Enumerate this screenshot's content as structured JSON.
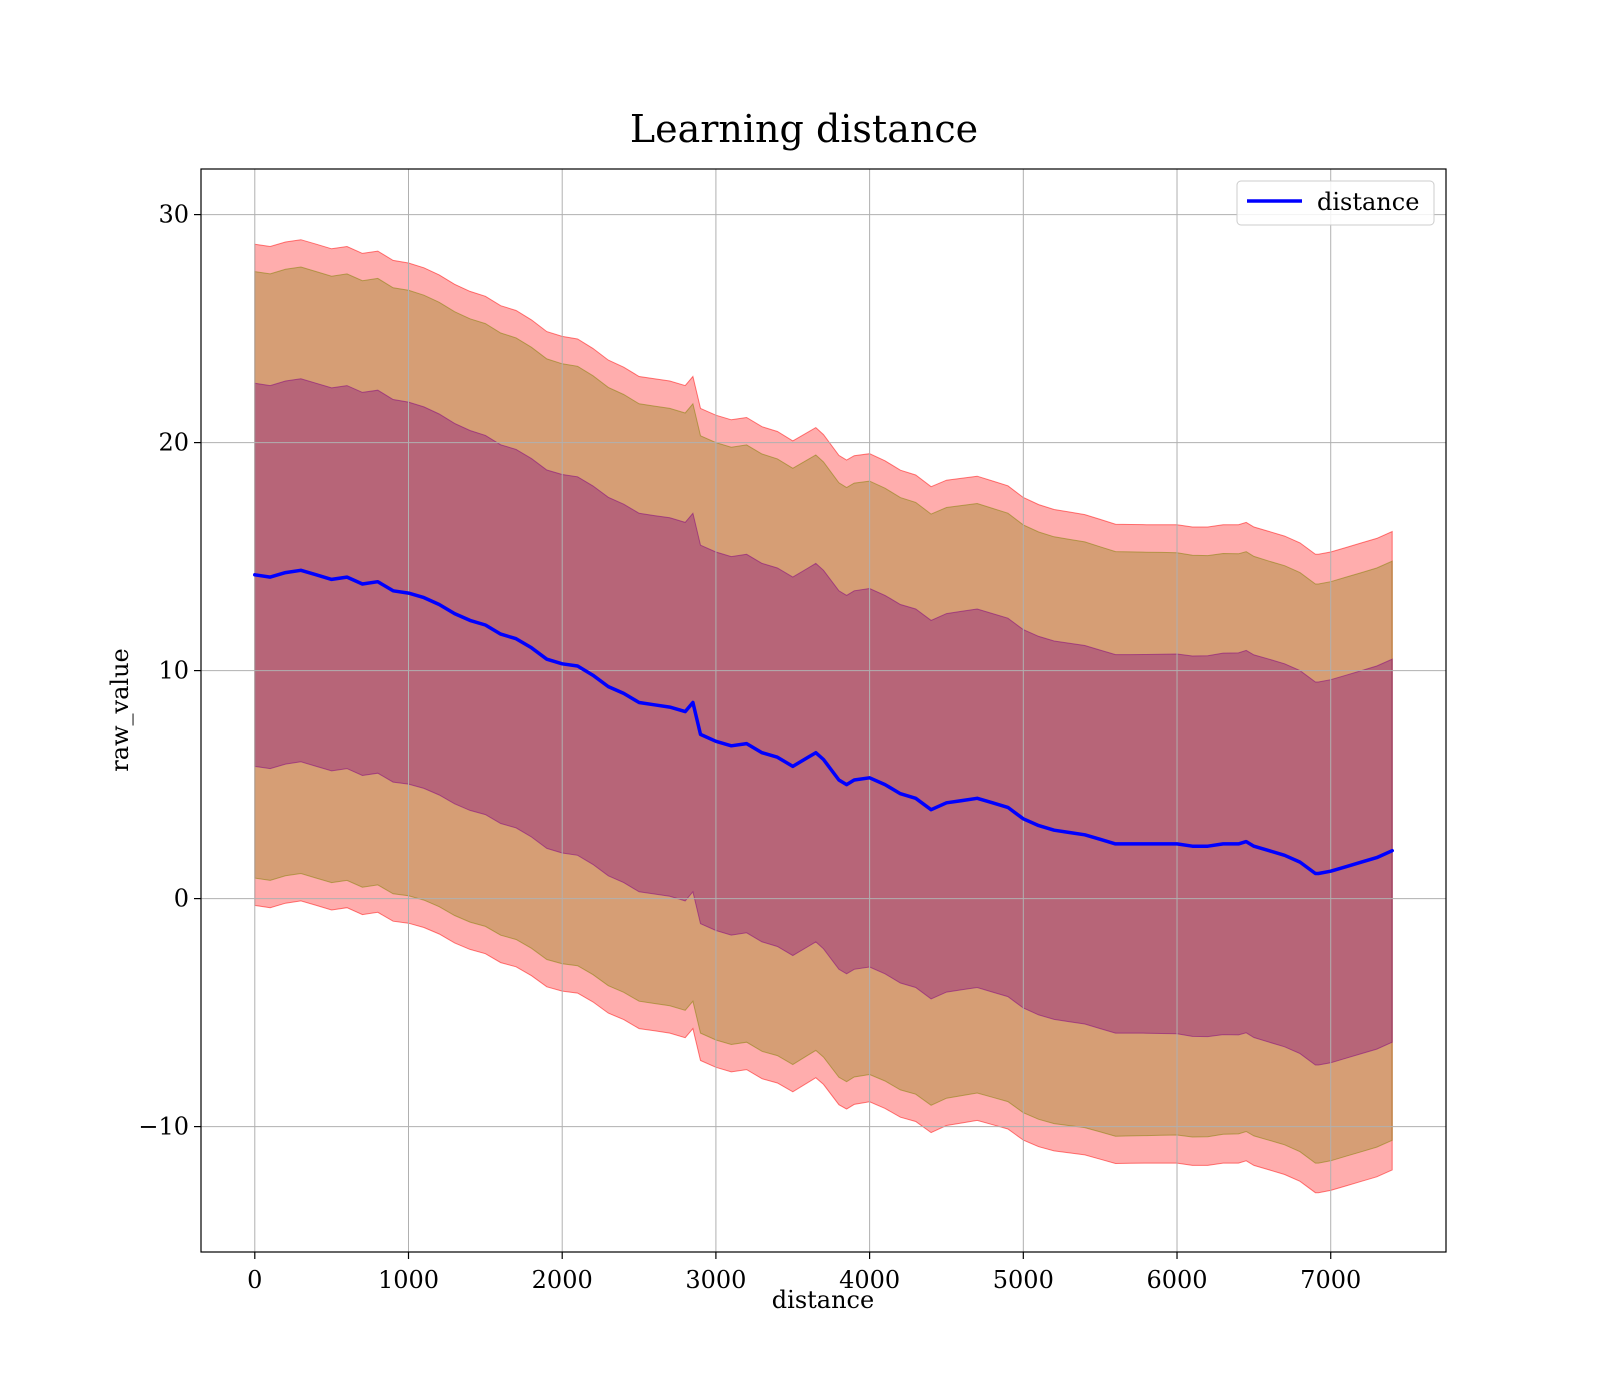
{
  "chart_data": {
    "type": "line",
    "title": "Learning distance",
    "xlabel": "distance",
    "ylabel": "raw_value",
    "xlim": [
      -350,
      7750
    ],
    "ylim": [
      -15.5,
      32
    ],
    "xticks": [
      0,
      1000,
      2000,
      3000,
      4000,
      5000,
      6000,
      7000
    ],
    "xtick_labels": [
      "0",
      "1000",
      "2000",
      "3000",
      "4000",
      "5000",
      "6000",
      "7000"
    ],
    "yticks": [
      -10,
      0,
      10,
      20,
      30
    ],
    "ytick_labels": [
      "−10",
      "0",
      "10",
      "20",
      "30"
    ],
    "grid": true,
    "legend": {
      "placement": "top-right",
      "entries": [
        "distance"
      ]
    },
    "series": [
      {
        "name": "distance",
        "color": "#0000ff",
        "x": [
          0,
          100,
          200,
          300,
          400,
          500,
          600,
          700,
          800,
          900,
          1000,
          1100,
          1200,
          1300,
          1400,
          1500,
          1600,
          1700,
          1800,
          1900,
          2000,
          2100,
          2200,
          2300,
          2400,
          2500,
          2600,
          2700,
          2800,
          2850,
          2900,
          3000,
          3100,
          3200,
          3300,
          3400,
          3500,
          3600,
          3650,
          3700,
          3800,
          3850,
          3900,
          4000,
          4100,
          4200,
          4300,
          4400,
          4500,
          4600,
          4700,
          4800,
          4900,
          5000,
          5100,
          5200,
          5300,
          5400,
          5500,
          5600,
          5700,
          5800,
          5900,
          6000,
          6100,
          6200,
          6300,
          6400,
          6450,
          6500,
          6600,
          6700,
          6800,
          6900,
          6920,
          7000,
          7100,
          7200,
          7300,
          7400
        ],
        "y": [
          14.2,
          14.1,
          14.3,
          14.4,
          14.2,
          14.0,
          14.1,
          13.8,
          13.9,
          13.5,
          13.4,
          13.2,
          12.9,
          12.5,
          12.2,
          12.0,
          11.6,
          11.4,
          11.0,
          10.5,
          10.3,
          10.2,
          9.8,
          9.3,
          9.0,
          8.6,
          8.5,
          8.4,
          8.2,
          8.6,
          7.2,
          6.9,
          6.7,
          6.8,
          6.4,
          6.2,
          5.8,
          6.2,
          6.4,
          6.1,
          5.2,
          5.0,
          5.2,
          5.3,
          5.0,
          4.6,
          4.4,
          3.9,
          4.2,
          4.3,
          4.4,
          4.2,
          4.0,
          3.5,
          3.2,
          3.0,
          2.9,
          2.8,
          2.6,
          2.4,
          2.4,
          2.4,
          2.4,
          2.4,
          2.3,
          2.3,
          2.4,
          2.4,
          2.5,
          2.3,
          2.1,
          1.9,
          1.6,
          1.1,
          1.1,
          1.2,
          1.4,
          1.6,
          1.8,
          2.1
        ]
      }
    ],
    "bands": [
      {
        "level": "outer",
        "fill": "#ff0000",
        "opacity": 0.32,
        "half_width": [
          14.5,
          14.5,
          14.4,
          14.3,
          14.3,
          14.2,
          14.1,
          14.0,
          14.0,
          14.0
        ]
      },
      {
        "level": "middle",
        "fill": "#808000",
        "opacity": 0.32,
        "half_width": [
          13.3,
          13.3,
          13.2,
          13.1,
          13.1,
          13.0,
          12.9,
          12.8,
          12.7,
          12.7
        ]
      },
      {
        "level": "inner",
        "fill": "#800080",
        "opacity": 0.36,
        "half_width": [
          8.4,
          8.4,
          8.3,
          8.3,
          8.3,
          8.3,
          8.3,
          8.3,
          8.4,
          8.4
        ]
      }
    ]
  }
}
